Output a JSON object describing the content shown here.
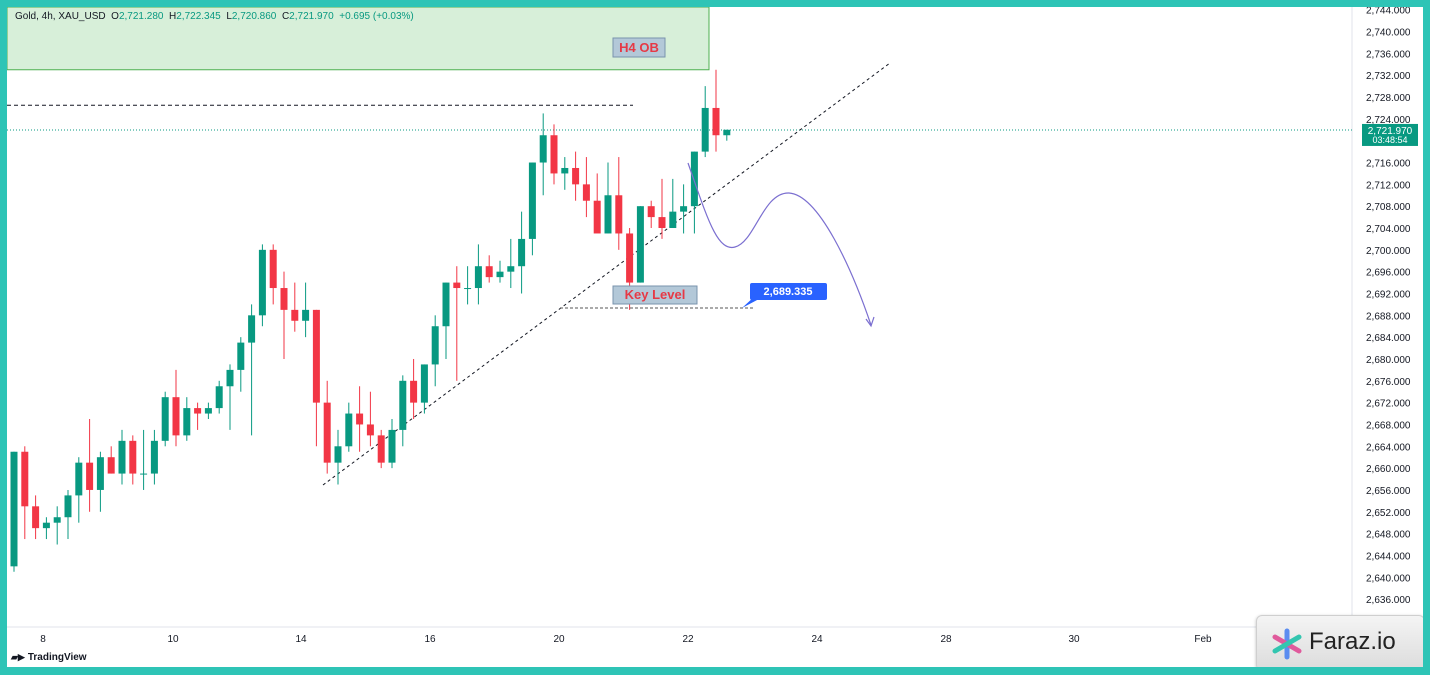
{
  "header": {
    "symbol": "Gold, 4h, XAU_USD",
    "open_label": "O",
    "open": "2,721.280",
    "high_label": "H",
    "high": "2,722.345",
    "low_label": "L",
    "low": "2,720.860",
    "close_label": "C",
    "close": "2,721.970",
    "change": "+0.695 (+0.03%)"
  },
  "footer": {
    "tradingview": "TradingView"
  },
  "watermark": {
    "text": "Faraz.io"
  },
  "colors": {
    "up": "#089981",
    "down": "#f23645",
    "frame": "#2ec4b6",
    "ob_fill": "#d7efd9",
    "ob_border": "#4caf50",
    "path": "#7b6fd0",
    "price_tag": "#2962ff"
  },
  "chart_data": {
    "type": "candlestick",
    "timeframe": "4h",
    "symbol": "XAU_USD",
    "ylim": [
      2634,
      2744
    ],
    "yticks": [
      "2,636.000",
      "2,640.000",
      "2,644.000",
      "2,648.000",
      "2,652.000",
      "2,656.000",
      "2,660.000",
      "2,664.000",
      "2,668.000",
      "2,672.000",
      "2,676.000",
      "2,680.000",
      "2,684.000",
      "2,688.000",
      "2,692.000",
      "2,696.000",
      "2,700.000",
      "2,704.000",
      "2,708.000",
      "2,712.000",
      "2,716.000",
      "2,720.000",
      "2,724.000",
      "2,728.000",
      "2,732.000",
      "2,736.000",
      "2,740.000",
      "2,744.000"
    ],
    "xticks": [
      "8",
      "10",
      "14",
      "16",
      "20",
      "22",
      "24",
      "28",
      "30",
      "Feb"
    ],
    "last_price": "2,721.970",
    "countdown": "03:48:54",
    "candles": [
      [
        2642,
        2663,
        2641,
        2663
      ],
      [
        2663,
        2664,
        2647,
        2653
      ],
      [
        2653,
        2655,
        2647,
        2649
      ],
      [
        2649,
        2651,
        2647,
        2650
      ],
      [
        2650,
        2653,
        2646,
        2651
      ],
      [
        2651,
        2656,
        2647,
        2655
      ],
      [
        2655,
        2662,
        2650,
        2661
      ],
      [
        2661,
        2669,
        2652,
        2656
      ],
      [
        2656,
        2663,
        2652,
        2662
      ],
      [
        2662,
        2664,
        2659,
        2659
      ],
      [
        2659,
        2667,
        2657,
        2665
      ],
      [
        2665,
        2666,
        2657,
        2659
      ],
      [
        2659,
        2667,
        2656,
        2659
      ],
      [
        2659,
        2667,
        2657,
        2665
      ],
      [
        2665,
        2674,
        2664,
        2673
      ],
      [
        2673,
        2678,
        2664,
        2666
      ],
      [
        2666,
        2673,
        2665,
        2671
      ],
      [
        2671,
        2672,
        2667,
        2670
      ],
      [
        2670,
        2672,
        2669,
        2671
      ],
      [
        2671,
        2676,
        2670,
        2675
      ],
      [
        2675,
        2679,
        2667,
        2678
      ],
      [
        2678,
        2684,
        2674,
        2683
      ],
      [
        2683,
        2690,
        2666,
        2688
      ],
      [
        2688,
        2701,
        2686,
        2700
      ],
      [
        2700,
        2701,
        2690,
        2693
      ],
      [
        2693,
        2696,
        2680,
        2689
      ],
      [
        2689,
        2694,
        2685,
        2687
      ],
      [
        2687,
        2694,
        2684,
        2689
      ],
      [
        2689,
        2689,
        2664,
        2672
      ],
      [
        2672,
        2676,
        2659,
        2661
      ],
      [
        2661,
        2667,
        2657,
        2664
      ],
      [
        2664,
        2672,
        2663,
        2670
      ],
      [
        2670,
        2675,
        2663,
        2668
      ],
      [
        2668,
        2674,
        2664,
        2666
      ],
      [
        2666,
        2667,
        2660,
        2661
      ],
      [
        2661,
        2669,
        2660,
        2667
      ],
      [
        2667,
        2677,
        2664,
        2676
      ],
      [
        2676,
        2680,
        2669,
        2672
      ],
      [
        2672,
        2679,
        2670,
        2679
      ],
      [
        2679,
        2688,
        2675,
        2686
      ],
      [
        2686,
        2694,
        2680,
        2694
      ],
      [
        2694,
        2697,
        2676,
        2693
      ],
      [
        2693,
        2697,
        2690,
        2693
      ],
      [
        2693,
        2701,
        2690,
        2697
      ],
      [
        2697,
        2699,
        2694,
        2695
      ],
      [
        2695,
        2698,
        2694,
        2696
      ],
      [
        2696,
        2702,
        2693,
        2697
      ],
      [
        2697,
        2707,
        2692,
        2702
      ],
      [
        2702,
        2716,
        2699,
        2716
      ],
      [
        2716,
        2725,
        2710,
        2721
      ],
      [
        2721,
        2723,
        2712,
        2714
      ],
      [
        2714,
        2717,
        2711,
        2715
      ],
      [
        2715,
        2718,
        2709,
        2712
      ],
      [
        2712,
        2717,
        2706,
        2709
      ],
      [
        2709,
        2714,
        2704,
        2703
      ],
      [
        2703,
        2716,
        2703,
        2710
      ],
      [
        2710,
        2717,
        2700,
        2703
      ],
      [
        2703,
        2704,
        2689,
        2694
      ],
      [
        2694,
        2708,
        2694,
        2708
      ],
      [
        2708,
        2709,
        2704,
        2706
      ],
      [
        2706,
        2713,
        2702,
        2704
      ],
      [
        2704,
        2713,
        2704,
        2707
      ],
      [
        2707,
        2712,
        2703,
        2708
      ],
      [
        2708,
        2718,
        2703,
        2718
      ],
      [
        2718,
        2730,
        2717,
        2726
      ],
      [
        2726,
        2733,
        2718,
        2721
      ],
      [
        2721,
        2722,
        2720,
        2722
      ]
    ],
    "annotations": [
      {
        "type": "zone",
        "label": "H4 OB",
        "from": 2733,
        "to": 2744
      },
      {
        "type": "hline",
        "style": "dashed",
        "value": 2726.5
      },
      {
        "type": "trendline",
        "style": "dashed",
        "from_price": 2657.5,
        "to_price": 2734
      },
      {
        "type": "label",
        "text": "Key Level",
        "value": 2692.5
      },
      {
        "type": "price_tag",
        "text": "2,689.335",
        "value": 2689.335
      },
      {
        "type": "projection",
        "style": "curve",
        "points": [
          2716.5,
          2701,
          2711,
          2686
        ]
      }
    ]
  }
}
